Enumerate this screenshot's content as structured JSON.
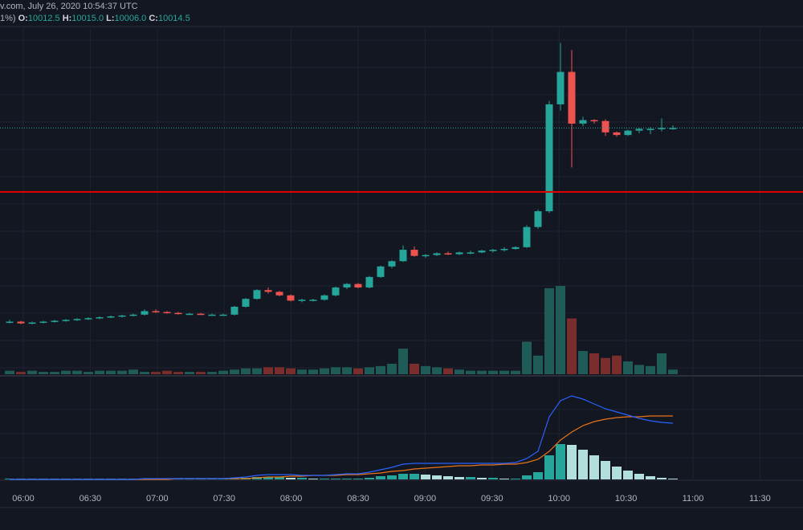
{
  "header": {
    "source_line": "v.com, July 26, 2020 10:54:37 UTC",
    "change_text": "1%)",
    "o_label": "O:",
    "o_value": "10012.5",
    "h_label": "H:",
    "h_value": "10015.0",
    "l_label": "L:",
    "l_value": "10006.0",
    "c_label": "C:",
    "c_value": "10014.5"
  },
  "colors": {
    "background": "#131722",
    "up": "#26a69a",
    "down": "#ef5350",
    "volume_up": "#1f5c57",
    "volume_down": "#7a2d2d",
    "red_line": "#e00000",
    "macd": "#2962ff",
    "signal": "#e8731a",
    "hist_strong": "#26a69a",
    "hist_weak": "#b2dfdb",
    "grid": "#1f2330"
  },
  "chart_data": {
    "type": "candlestick",
    "x_tick_labels": [
      "06:00",
      "06:30",
      "07:00",
      "07:30",
      "08:00",
      "08:30",
      "09:00",
      "09:30",
      "10:00",
      "10:30",
      "11:00",
      "11:30"
    ],
    "candles": [
      [
        9760,
        9762,
        9758,
        9760
      ],
      [
        9760,
        9761,
        9757,
        9758
      ],
      [
        9758,
        9760,
        9757,
        9759
      ],
      [
        9759,
        9761,
        9758,
        9760
      ],
      [
        9760,
        9762,
        9759,
        9761
      ],
      [
        9761,
        9763,
        9760,
        9762
      ],
      [
        9762,
        9764,
        9761,
        9763
      ],
      [
        9763,
        9765,
        9762,
        9764
      ],
      [
        9764,
        9766,
        9763,
        9765
      ],
      [
        9765,
        9767,
        9764,
        9766
      ],
      [
        9766,
        9768,
        9765,
        9767
      ],
      [
        9767,
        9769,
        9766,
        9768
      ],
      [
        9768,
        9774,
        9767,
        9772
      ],
      [
        9772,
        9774,
        9770,
        9771
      ],
      [
        9771,
        9772,
        9769,
        9770
      ],
      [
        9770,
        9771,
        9768,
        9769
      ],
      [
        9769,
        9770,
        9768,
        9769
      ],
      [
        9769,
        9770,
        9768,
        9768
      ],
      [
        9768,
        9769,
        9767,
        9768
      ],
      [
        9768,
        9769,
        9767,
        9768
      ],
      [
        9768,
        9778,
        9767,
        9777
      ],
      [
        9777,
        9787,
        9776,
        9786
      ],
      [
        9786,
        9797,
        9785,
        9796
      ],
      [
        9796,
        9799,
        9792,
        9794
      ],
      [
        9794,
        9795,
        9789,
        9790
      ],
      [
        9790,
        9791,
        9783,
        9784
      ],
      [
        9784,
        9786,
        9782,
        9785
      ],
      [
        9785,
        9786,
        9783,
        9785
      ],
      [
        9785,
        9791,
        9784,
        9790
      ],
      [
        9790,
        9800,
        9789,
        9799
      ],
      [
        9799,
        9804,
        9797,
        9803
      ],
      [
        9803,
        9804,
        9798,
        9799
      ],
      [
        9799,
        9812,
        9798,
        9811
      ],
      [
        9811,
        9824,
        9810,
        9823
      ],
      [
        9823,
        9830,
        9821,
        9829
      ],
      [
        9829,
        9847,
        9828,
        9842
      ],
      [
        9842,
        9846,
        9834,
        9835
      ],
      [
        9835,
        9837,
        9833,
        9836
      ],
      [
        9836,
        9839,
        9835,
        9838
      ],
      [
        9838,
        9840,
        9836,
        9837
      ],
      [
        9837,
        9840,
        9836,
        9839
      ],
      [
        9839,
        9841,
        9837,
        9839
      ],
      [
        9839,
        9842,
        9838,
        9841
      ],
      [
        9841,
        9843,
        9839,
        9842
      ],
      [
        9842,
        9845,
        9840,
        9843
      ],
      [
        9843,
        9846,
        9842,
        9845
      ],
      [
        9845,
        9870,
        9844,
        9868
      ],
      [
        9868,
        9888,
        9866,
        9886
      ],
      [
        9886,
        10012,
        9884,
        10008
      ],
      [
        10008,
        10078,
        10001,
        10045
      ],
      [
        10045,
        10070,
        9936,
        9986
      ],
      [
        9986,
        9994,
        9983,
        9990
      ],
      [
        9990,
        9991,
        9986,
        9989
      ],
      [
        9989,
        9991,
        9972,
        9976
      ],
      [
        9976,
        9977,
        9971,
        9973
      ],
      [
        9973,
        9979,
        9972,
        9978
      ],
      [
        9978,
        9981,
        9975,
        9980
      ],
      [
        9980,
        9982,
        9974,
        9980
      ],
      [
        9980,
        9992,
        9977,
        9981
      ],
      [
        9981,
        9984,
        9979,
        9981
      ]
    ],
    "volume": [
      3,
      2,
      3,
      2,
      2,
      3,
      3,
      2,
      3,
      3,
      3,
      4,
      2,
      2,
      3,
      2,
      2,
      2,
      2,
      3,
      4,
      5,
      5,
      6,
      6,
      5,
      4,
      4,
      5,
      6,
      6,
      5,
      6,
      7,
      9,
      22,
      9,
      7,
      6,
      5,
      4,
      3,
      3,
      3,
      3,
      3,
      28,
      16,
      74,
      76,
      48,
      20,
      18,
      14,
      16,
      11,
      8,
      7,
      18,
      4
    ],
    "macd": [
      0,
      0,
      0,
      0,
      0,
      0,
      0,
      0,
      0,
      0,
      0,
      0,
      1,
      1,
      1,
      1,
      1,
      1,
      1,
      1,
      2,
      3,
      5,
      6,
      6,
      6,
      5,
      5,
      5,
      6,
      7,
      7,
      9,
      12,
      15,
      19,
      20,
      20,
      20,
      20,
      20,
      20,
      20,
      20,
      20,
      21,
      26,
      35,
      78,
      98,
      104,
      100,
      94,
      88,
      84,
      80,
      76,
      73,
      71,
      70
    ],
    "signal": [
      0,
      0,
      0,
      0,
      0,
      0,
      0,
      0,
      0,
      0,
      0,
      0,
      0,
      0,
      0,
      1,
      1,
      1,
      1,
      1,
      1,
      1,
      2,
      3,
      3,
      4,
      4,
      5,
      5,
      5,
      6,
      6,
      7,
      8,
      10,
      11,
      13,
      14,
      15,
      16,
      17,
      17,
      18,
      18,
      19,
      19,
      21,
      25,
      35,
      49,
      59,
      67,
      72,
      75,
      77,
      78,
      78,
      79,
      79,
      79
    ],
    "hist": [
      0,
      0,
      0,
      0,
      0,
      0,
      0,
      0,
      0,
      0,
      1,
      1,
      1,
      1,
      1,
      1,
      1,
      1,
      1,
      1,
      1,
      2,
      3,
      3,
      3,
      2,
      2,
      1,
      1,
      1,
      1,
      1,
      2,
      4,
      5,
      7,
      7,
      6,
      5,
      4,
      3,
      3,
      2,
      2,
      1,
      1,
      5,
      9,
      30,
      44,
      43,
      37,
      30,
      23,
      16,
      11,
      7,
      4,
      2,
      0
    ]
  }
}
